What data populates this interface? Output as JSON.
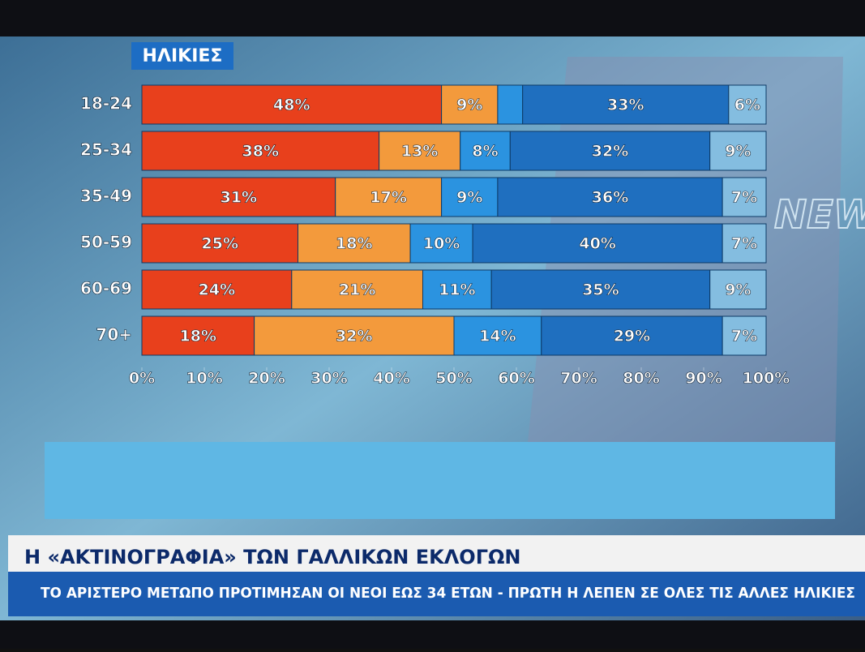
{
  "chart_data": {
    "type": "stacked_bar_horizontal",
    "title": "ΗΛΙΚΙΕΣ",
    "categories": [
      "18-24",
      "25-34",
      "35-49",
      "50-59",
      "60-69",
      "70+"
    ],
    "series": [
      {
        "color": "#e8401c",
        "values": [
          48,
          38,
          31,
          25,
          24,
          18
        ],
        "value_labels": [
          "48%",
          "38%",
          "31%",
          "25%",
          "24%",
          "18%"
        ]
      },
      {
        "color": "#f39a3c",
        "values": [
          9,
          13,
          17,
          18,
          21,
          32
        ],
        "value_labels": [
          "9%",
          "13%",
          "17%",
          "18%",
          "21%",
          "32%"
        ]
      },
      {
        "color": "#2b93e0",
        "values": [
          4,
          8,
          9,
          10,
          11,
          14
        ],
        "value_labels": [
          null,
          "8%",
          "9%",
          "10%",
          "11%",
          "14%"
        ]
      },
      {
        "color": "#1f6fbf",
        "values": [
          33,
          32,
          36,
          40,
          35,
          29
        ],
        "value_labels": [
          "33%",
          "32%",
          "36%",
          "40%",
          "35%",
          "29%"
        ]
      },
      {
        "color": "#84bde0",
        "values": [
          6,
          9,
          7,
          7,
          9,
          7
        ],
        "value_labels": [
          "6%",
          "9%",
          "7%",
          "7%",
          "9%",
          "7%"
        ]
      }
    ],
    "xlim": [
      0,
      100
    ],
    "xticks": [
      {
        "value": 0,
        "label": "0%"
      },
      {
        "value": 10,
        "label": "10%"
      },
      {
        "value": 20,
        "label": "20%"
      },
      {
        "value": 30,
        "label": "30%"
      },
      {
        "value": 40,
        "label": "40%"
      },
      {
        "value": 50,
        "label": "50%"
      },
      {
        "value": 60,
        "label": "60%"
      },
      {
        "value": 70,
        "label": "70%"
      },
      {
        "value": 80,
        "label": "80%"
      },
      {
        "value": 90,
        "label": "90%"
      },
      {
        "value": 100,
        "label": "100%"
      }
    ]
  },
  "watermark": "NEW",
  "banner": {
    "headline": "Η «ΑΚΤΙΝΟΓΡΑΦΙΑ» ΤΩΝ ΓΑΛΛΙΚΩΝ ΕΚΛΟΓΩΝ",
    "subheadline": "ΤΟ ΑΡΙΣΤΕΡΟ ΜΕΤΩΠΟ ΠΡΟΤΙΜΗΣΑΝ ΟΙ ΝΕΟΙ ΕΩΣ 34 ΕΤΩΝ - ΠΡΩΤΗ Η ΛΕΠΕΝ ΣΕ ΟΛΕΣ ΤΙΣ ΑΛΛΕΣ ΗΛΙΚΙΕΣ"
  }
}
